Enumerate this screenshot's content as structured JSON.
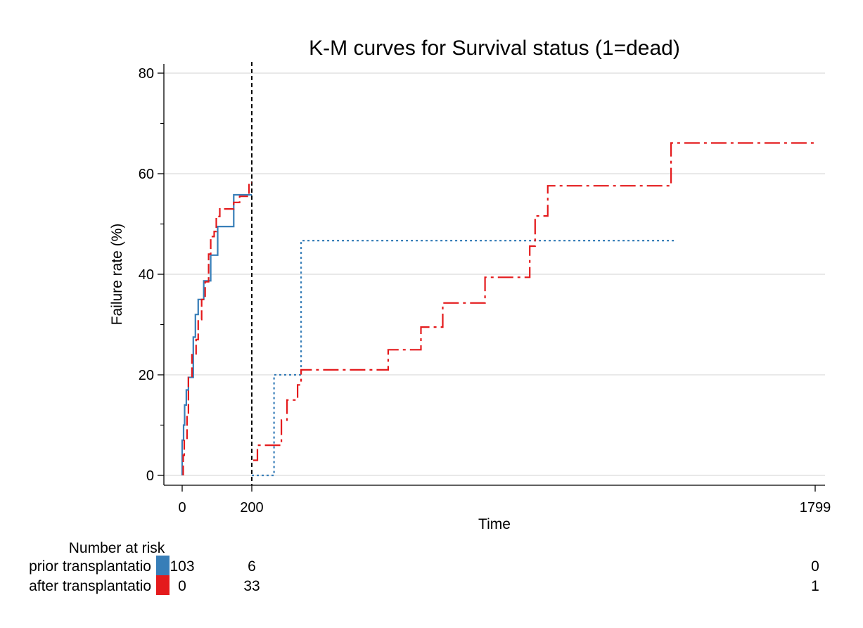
{
  "chart_data": {
    "type": "line",
    "title": "K-M curves for Survival status (1=dead)",
    "xlabel": "Time",
    "ylabel": "Failure rate (%)",
    "xlim": [
      -50,
      1830
    ],
    "ylim": [
      -2,
      82
    ],
    "x_ticks": [
      0,
      200,
      1799
    ],
    "y_ticks": [
      0,
      20,
      40,
      60,
      80
    ],
    "y_minor_ticks": [
      10,
      30,
      50,
      70
    ],
    "grid": "horizontal",
    "reference_line_x": 200,
    "colors": {
      "prior": "#377eb8",
      "after": "#e41a1c",
      "reference": "#000000",
      "grid": "#dcdcdc"
    },
    "series": [
      {
        "key": "prior_before",
        "color": "#377eb8",
        "dash": "solid",
        "points": [
          [
            0,
            0
          ],
          [
            0,
            7
          ],
          [
            4,
            7
          ],
          [
            4,
            10
          ],
          [
            7,
            10
          ],
          [
            7,
            14
          ],
          [
            12,
            14
          ],
          [
            12,
            17
          ],
          [
            18,
            17
          ],
          [
            18,
            19.5
          ],
          [
            32,
            19.5
          ],
          [
            32,
            27.5
          ],
          [
            38,
            27.5
          ],
          [
            38,
            32
          ],
          [
            46,
            32
          ],
          [
            46,
            35
          ],
          [
            62,
            35
          ],
          [
            62,
            38.7
          ],
          [
            82,
            38.7
          ],
          [
            82,
            43.8
          ],
          [
            102,
            43.8
          ],
          [
            102,
            49.5
          ],
          [
            148,
            49.5
          ],
          [
            148,
            55.8
          ],
          [
            200,
            55.8
          ]
        ]
      },
      {
        "key": "after_before",
        "color": "#e41a1c",
        "dash": "longdash",
        "points": [
          [
            3,
            0
          ],
          [
            3,
            4
          ],
          [
            6,
            4
          ],
          [
            6,
            7
          ],
          [
            14,
            7
          ],
          [
            14,
            12
          ],
          [
            18,
            12
          ],
          [
            18,
            19.5
          ],
          [
            28,
            19.5
          ],
          [
            28,
            24
          ],
          [
            40,
            24
          ],
          [
            40,
            27
          ],
          [
            46,
            27
          ],
          [
            46,
            31
          ],
          [
            56,
            31
          ],
          [
            56,
            35
          ],
          [
            66,
            35
          ],
          [
            66,
            38.5
          ],
          [
            76,
            38.5
          ],
          [
            76,
            44
          ],
          [
            82,
            44
          ],
          [
            82,
            47.5
          ],
          [
            92,
            47.5
          ],
          [
            92,
            48.5
          ],
          [
            98,
            48.5
          ],
          [
            98,
            51.5
          ],
          [
            108,
            51.5
          ],
          [
            108,
            53
          ],
          [
            148,
            53
          ],
          [
            148,
            54.3
          ],
          [
            165,
            54.3
          ],
          [
            165,
            55.5
          ],
          [
            192,
            55.5
          ],
          [
            192,
            58.2
          ],
          [
            200,
            58.2
          ]
        ]
      },
      {
        "key": "prior_after",
        "color": "#377eb8",
        "dash": "dot",
        "points": [
          [
            200,
            0
          ],
          [
            263,
            0
          ],
          [
            263,
            20
          ],
          [
            340,
            20
          ],
          [
            340,
            46.7
          ],
          [
            1400,
            46.7
          ]
        ]
      },
      {
        "key": "after_after",
        "color": "#e41a1c",
        "dash": "dashdot",
        "points": [
          [
            204,
            3
          ],
          [
            216,
            3
          ],
          [
            216,
            6
          ],
          [
            284,
            6
          ],
          [
            284,
            11
          ],
          [
            300,
            11
          ],
          [
            300,
            15
          ],
          [
            330,
            15
          ],
          [
            330,
            18
          ],
          [
            340,
            18
          ],
          [
            340,
            21
          ],
          [
            587,
            21
          ],
          [
            587,
            25
          ],
          [
            680,
            25
          ],
          [
            680,
            29.5
          ],
          [
            742,
            29.5
          ],
          [
            742,
            34.3
          ],
          [
            862,
            34.3
          ],
          [
            862,
            39.4
          ],
          [
            989,
            39.4
          ],
          [
            989,
            45.6
          ],
          [
            1004,
            45.6
          ],
          [
            1004,
            51.6
          ],
          [
            1040,
            51.6
          ],
          [
            1040,
            57.6
          ],
          [
            1390,
            57.6
          ],
          [
            1390,
            66.1
          ],
          [
            1799,
            66.1
          ]
        ]
      }
    ]
  },
  "risk_table": {
    "title": "Number at risk",
    "rows": [
      {
        "label": "prior transplantatio",
        "color": "#377eb8",
        "values": [
          {
            "x": 0,
            "text": "103"
          },
          {
            "x": 200,
            "text": "6"
          },
          {
            "x": 1799,
            "text": "0"
          }
        ]
      },
      {
        "label": "after transplantatio",
        "color": "#e41a1c",
        "values": [
          {
            "x": 0,
            "text": "0"
          },
          {
            "x": 200,
            "text": "33"
          },
          {
            "x": 1799,
            "text": "1"
          }
        ]
      }
    ]
  }
}
